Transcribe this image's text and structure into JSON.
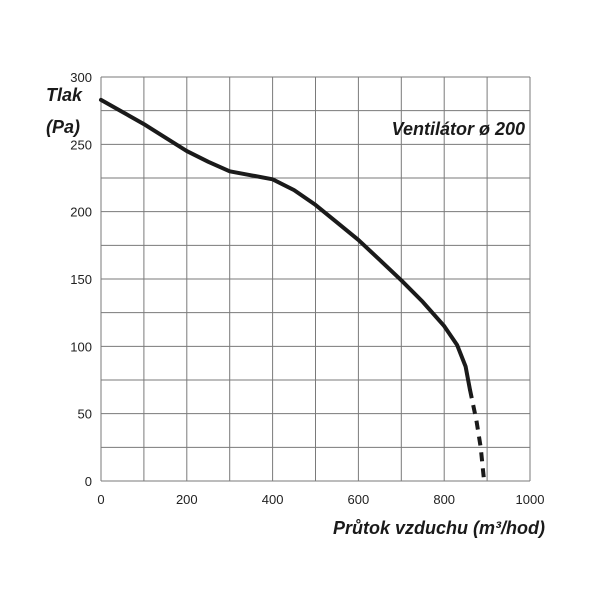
{
  "chart_data": {
    "type": "line",
    "title": "",
    "annotation": "Ventilátor ø 200",
    "ylabel_line1": "Tlak",
    "ylabel_line2": "(Pa)",
    "xlabel": "Průtok vzduchu (m³/hod)",
    "xlim": [
      0,
      1000
    ],
    "ylim": [
      0,
      300
    ],
    "grid": true,
    "x_minor_step": 100,
    "y_minor_step": 25,
    "x_ticks": [
      0,
      200,
      400,
      600,
      800,
      1000
    ],
    "y_ticks": [
      0,
      50,
      100,
      150,
      200,
      250,
      300
    ],
    "series": [
      {
        "style": "solid",
        "points": [
          [
            0,
            283
          ],
          [
            50,
            274
          ],
          [
            100,
            265
          ],
          [
            150,
            255
          ],
          [
            200,
            245
          ],
          [
            250,
            237
          ],
          [
            300,
            230
          ],
          [
            350,
            227
          ],
          [
            400,
            224
          ],
          [
            450,
            216
          ],
          [
            500,
            205
          ],
          [
            550,
            192
          ],
          [
            600,
            179
          ],
          [
            650,
            164
          ],
          [
            700,
            149
          ],
          [
            750,
            133
          ],
          [
            800,
            115
          ],
          [
            830,
            101
          ],
          [
            850,
            85
          ],
          [
            860,
            68
          ]
        ]
      },
      {
        "style": "dashed",
        "points": [
          [
            860,
            68
          ],
          [
            875,
            45
          ],
          [
            885,
            25
          ],
          [
            893,
            0
          ]
        ]
      }
    ],
    "line_color": "#1a1a1a",
    "grid_color": "#7a7a7a"
  }
}
